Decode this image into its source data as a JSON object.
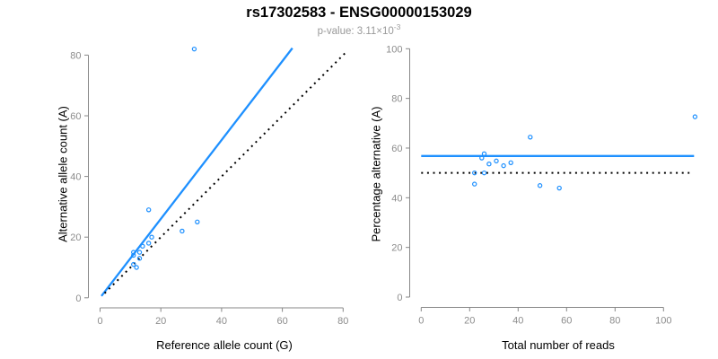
{
  "header": {
    "title": "rs17302583 - ENSG00000153029",
    "subtitle_prefix": "p-value: 3.11×10",
    "subtitle_exponent": "-3"
  },
  "colors": {
    "point_blue": "#1E90FF",
    "axis_gray": "#878787",
    "tick_label_gray": "#8c8c8c",
    "label_black": "#000000",
    "subtitle_gray": "#9a9a9a"
  },
  "chart_data": [
    {
      "type": "scatter",
      "title": "",
      "xlabel": "Reference allele count (G)",
      "ylabel": "Alternative allele count (A)",
      "xlim": [
        0,
        82
      ],
      "ylim": [
        0,
        83
      ],
      "xticks": [
        0,
        20,
        40,
        60,
        80
      ],
      "yticks": [
        0,
        20,
        40,
        60,
        80
      ],
      "grid": false,
      "points": [
        [
          31,
          82
        ],
        [
          16,
          29
        ],
        [
          17,
          20
        ],
        [
          16,
          18
        ],
        [
          14,
          17
        ],
        [
          13,
          15
        ],
        [
          11,
          15
        ],
        [
          11,
          14
        ],
        [
          13,
          13
        ],
        [
          11,
          11
        ],
        [
          12,
          10
        ],
        [
          27,
          22
        ],
        [
          32,
          25
        ]
      ],
      "lines": [
        {
          "name": "regression-line",
          "x1": 0.45,
          "y1": 0.6,
          "x2": 63.3,
          "y2": 82.3,
          "slope": 1.3,
          "color": "#1E90FF",
          "style": "solid",
          "width": 2.3
        },
        {
          "name": "identity-line",
          "x1": 1.5,
          "y1": 1.5,
          "x2": 81.5,
          "y2": 81.5,
          "slope": 1.0,
          "color": "#000000",
          "style": "dotted",
          "width": 2
        }
      ]
    },
    {
      "type": "scatter",
      "title": "",
      "xlabel": "Total number of reads",
      "ylabel": "Percentage alternative (A)",
      "xlim": [
        0,
        113
      ],
      "ylim": [
        0,
        100
      ],
      "xticks": [
        0,
        20,
        40,
        60,
        80,
        100
      ],
      "yticks": [
        0,
        20,
        40,
        60,
        80,
        100
      ],
      "grid": false,
      "points": [
        [
          113,
          72.6
        ],
        [
          45,
          64.4
        ],
        [
          37,
          54.1
        ],
        [
          34,
          52.9
        ],
        [
          31,
          54.8
        ],
        [
          28,
          53.6
        ],
        [
          26,
          57.7
        ],
        [
          25,
          56.0
        ],
        [
          26,
          50.0
        ],
        [
          22,
          50.0
        ],
        [
          22,
          45.5
        ],
        [
          49,
          44.9
        ],
        [
          57,
          43.9
        ]
      ],
      "lines": [
        {
          "name": "fitted-percentage-line",
          "x1": 0,
          "y1": 56.8,
          "x2": 112.6,
          "y2": 56.8,
          "color": "#1E90FF",
          "style": "solid",
          "width": 2.3
        },
        {
          "name": "null-50-percent-line",
          "x1": 0,
          "y1": 50,
          "x2": 110.7,
          "y2": 50,
          "color": "#000000",
          "style": "dotted",
          "width": 2
        }
      ]
    }
  ]
}
